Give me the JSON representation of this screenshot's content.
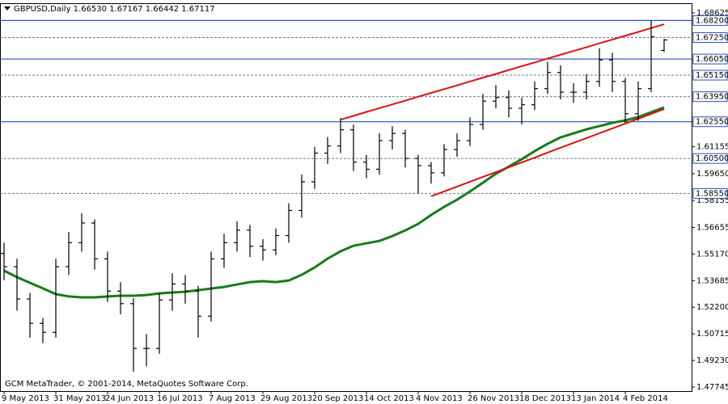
{
  "chart_data": {
    "type": "ohlc",
    "title": "GBPUSD,Daily  1.66530 1.67167 1.66442 1.67117",
    "footer": "GCM MetaTrader, © 2001-2014, MetaQuotes Software Corp.",
    "color": "#000000",
    "categories": [
      "9 May 2013",
      null,
      null,
      null,
      "31 May 2013",
      null,
      null,
      null,
      "24 Jun 2013",
      null,
      null,
      null,
      "16 Jul 2013",
      null,
      null,
      null,
      "7 Aug 2013",
      null,
      null,
      null,
      "29 Aug 2013",
      null,
      null,
      null,
      "20 Sep 2013",
      null,
      null,
      null,
      "14 Oct 2013",
      null,
      null,
      null,
      "4 Nov 2013",
      null,
      null,
      null,
      "26 Nov 2013",
      null,
      null,
      null,
      "18 Dec 2013",
      null,
      null,
      null,
      "13 Jan 2014",
      null,
      null,
      null,
      "4 Feb 2014",
      null,
      null,
      null
    ],
    "open": [
      1.552,
      1.5446,
      1.5266,
      1.513,
      1.508,
      1.5446,
      1.558,
      1.569,
      1.549,
      1.531,
      1.524,
      1.499,
      1.499,
      1.526,
      1.535,
      1.531,
      1.517,
      1.549,
      1.558,
      1.565,
      1.556,
      1.554,
      1.562,
      1.576,
      1.592,
      1.608,
      1.612,
      1.621,
      1.603,
      1.599,
      1.615,
      1.619,
      1.605,
      1.601,
      1.597,
      1.61,
      1.615,
      1.624,
      1.637,
      1.639,
      1.633,
      1.635,
      1.644,
      1.653,
      1.642,
      1.642,
      1.648,
      1.66,
      1.648,
      1.63,
      1.644,
      1.6653
    ],
    "high": [
      1.558,
      1.549,
      1.53,
      1.516,
      1.549,
      1.564,
      1.5745,
      1.571,
      1.553,
      1.536,
      1.527,
      1.507,
      1.53,
      1.541,
      1.54,
      1.534,
      1.553,
      1.563,
      1.57,
      1.568,
      1.56,
      1.566,
      1.58,
      1.596,
      1.6115,
      1.617,
      1.6275,
      1.624,
      1.607,
      1.619,
      1.623,
      1.621,
      1.607,
      1.603,
      1.613,
      1.619,
      1.628,
      1.641,
      1.646,
      1.643,
      1.639,
      1.648,
      1.659,
      1.657,
      1.647,
      1.652,
      1.6665,
      1.664,
      1.65,
      1.648,
      1.682,
      1.67167
    ],
    "low": [
      1.537,
      1.52,
      1.505,
      1.502,
      1.505,
      1.54,
      1.553,
      1.543,
      1.525,
      1.518,
      1.486,
      1.489,
      1.496,
      1.52,
      1.524,
      1.505,
      1.514,
      1.544,
      1.553,
      1.55,
      1.548,
      1.551,
      1.558,
      1.572,
      1.588,
      1.602,
      1.608,
      1.598,
      1.594,
      1.596,
      1.61,
      1.6,
      1.5855,
      1.591,
      1.595,
      1.606,
      1.612,
      1.621,
      1.633,
      1.628,
      1.624,
      1.632,
      1.641,
      1.638,
      1.636,
      1.638,
      1.645,
      1.642,
      1.625,
      1.626,
      1.642,
      1.66442
    ],
    "close": [
      1.5446,
      1.5266,
      1.513,
      1.508,
      1.5446,
      1.558,
      1.569,
      1.549,
      1.531,
      1.524,
      1.499,
      1.499,
      1.526,
      1.535,
      1.531,
      1.517,
      1.549,
      1.558,
      1.565,
      1.556,
      1.554,
      1.562,
      1.576,
      1.592,
      1.608,
      1.612,
      1.621,
      1.603,
      1.599,
      1.615,
      1.619,
      1.605,
      1.601,
      1.597,
      1.61,
      1.615,
      1.624,
      1.637,
      1.639,
      1.633,
      1.635,
      1.644,
      1.653,
      1.642,
      1.642,
      1.648,
      1.66,
      1.648,
      1.63,
      1.644,
      1.673,
      1.67117
    ],
    "lines": [
      {
        "color": "#1a7a1a",
        "values": [
          1.5424,
          1.5388,
          1.5356,
          1.5325,
          1.5293,
          1.528,
          1.5275,
          1.5275,
          1.528,
          1.5284,
          1.5284,
          1.5288,
          1.5297,
          1.5302,
          1.5306,
          1.5315,
          1.5324,
          1.5333,
          1.5347,
          1.536,
          1.5365,
          1.536,
          1.5369,
          1.5401,
          1.5442,
          1.5491,
          1.5532,
          1.5563,
          1.5577,
          1.559,
          1.5617,
          1.5649,
          1.5685,
          1.5735,
          1.578,
          1.582,
          1.5866,
          1.5915,
          1.5965,
          1.6005,
          1.6046,
          1.6091,
          1.6132,
          1.6168,
          1.619,
          1.6213,
          1.6231,
          1.6249,
          1.6263,
          1.6281,
          1.6308,
          1.6335
        ]
      },
      {
        "color": "#e01010",
        "values": [
          null,
          null,
          null,
          null,
          null,
          null,
          null,
          null,
          null,
          null,
          null,
          null,
          null,
          null,
          null,
          null,
          null,
          null,
          null,
          null,
          null,
          null,
          null,
          null,
          null,
          null,
          1.6267,
          1.6288,
          1.631,
          1.6331,
          1.6352,
          1.6373,
          1.6395,
          1.6416,
          1.6437,
          1.6458,
          1.648,
          1.6501,
          1.6522,
          1.6544,
          1.6565,
          1.6586,
          1.6608,
          1.6629,
          1.665,
          1.6671,
          1.6693,
          1.6714,
          1.6735,
          1.6756,
          1.6778,
          1.6799
        ]
      },
      {
        "color": "#e01010",
        "values": [
          null,
          null,
          null,
          null,
          null,
          null,
          null,
          null,
          null,
          null,
          null,
          null,
          null,
          null,
          null,
          null,
          null,
          null,
          null,
          null,
          null,
          null,
          null,
          null,
          null,
          null,
          null,
          null,
          null,
          null,
          null,
          null,
          null,
          1.5839,
          1.5866,
          1.5893,
          1.592,
          1.5947,
          1.5974,
          1.6001,
          1.6028,
          1.6055,
          1.6083,
          1.611,
          1.6137,
          1.6164,
          1.6191,
          1.6218,
          1.6245,
          1.6272,
          1.6299,
          1.6326
        ]
      }
    ],
    "levels": [
      {
        "value": 1.682,
        "label": "1.68200",
        "style": "solid"
      },
      {
        "value": 1.6725,
        "label": "1.67250",
        "style": "dashed"
      },
      {
        "value": 1.6605,
        "label": "1.66050",
        "style": "solid"
      },
      {
        "value": 1.6515,
        "label": "1.65150",
        "style": "dashed"
      },
      {
        "value": 1.6395,
        "label": "1.63950",
        "style": "dashed"
      },
      {
        "value": 1.6255,
        "label": "1.62550",
        "style": "solid"
      },
      {
        "value": 1.605,
        "label": "1.60500",
        "style": "dashed"
      },
      {
        "value": 1.5855,
        "label": "1.58550",
        "style": "dashed"
      }
    ],
    "ylim": [
      1.4752,
      1.6912
    ],
    "yticks": [
      1.68625,
      1.61155,
      {
        "value": 1.5965,
        "label": "1.59650"
      },
      1.58155,
      1.56655,
      {
        "value": 1.5517,
        "label": "1.55170"
      },
      1.53685,
      {
        "value": 1.522,
        "label": "1.52200"
      },
      1.50715,
      {
        "value": 1.4923,
        "label": "1.49230"
      },
      1.47745
    ]
  }
}
